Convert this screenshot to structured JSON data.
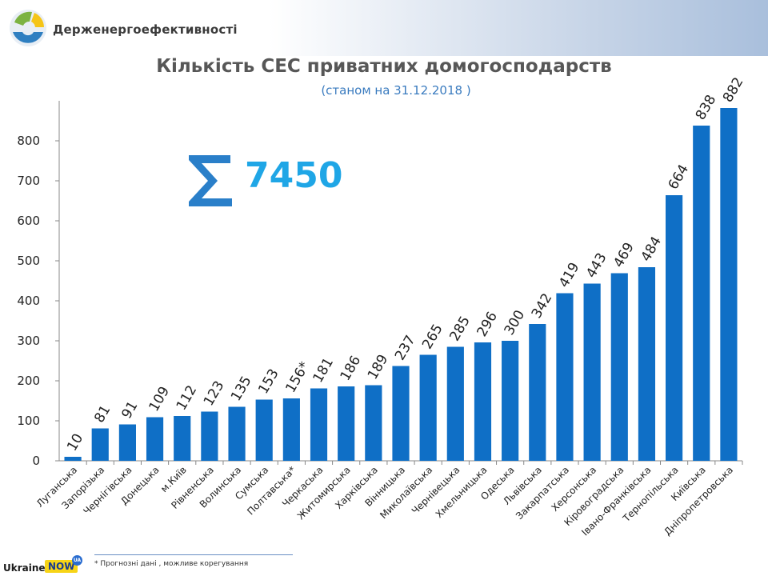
{
  "header": {
    "agency_name": "Держенергоефективності",
    "logo_icon": "agency-logo-icon"
  },
  "chart_data": {
    "type": "bar",
    "title": "Кількість СЕС приватних домогосподарств",
    "subtitle": "(станом на 31.12.2018 )",
    "xlabel": "",
    "ylabel": "",
    "ylim": [
      0,
      900
    ],
    "yticks": [
      0,
      100,
      200,
      300,
      400,
      500,
      600,
      700,
      800
    ],
    "grid": false,
    "bar_color": "#0f6fc6",
    "categories": [
      "Луганська",
      "Запорізька",
      "Чернігівська",
      "Донецька",
      "м.Київ",
      "Рівненська",
      "Волинська",
      "Сумська",
      "Полтавська*",
      "Черкаська",
      "Житомирська",
      "Харківська",
      "Вінницька",
      "Миколаївська",
      "Чернівецька",
      "Хмельницька",
      "Одеська",
      "Львівська",
      "Закарпатська",
      "Херсонська",
      "Кіровоградська",
      "Івано-Франківська",
      "Тернопільська",
      "Київська",
      "Дніпропетровська"
    ],
    "values": [
      10,
      81,
      91,
      109,
      112,
      123,
      135,
      153,
      156,
      181,
      186,
      189,
      237,
      265,
      285,
      296,
      300,
      342,
      419,
      443,
      469,
      484,
      664,
      838,
      882
    ],
    "data_labels": [
      "10",
      "81",
      "91",
      "109",
      "112",
      "123",
      "135",
      "153",
      "156*",
      "181",
      "186",
      "189",
      "237",
      "265",
      "285",
      "296",
      "300",
      "342",
      "419",
      "443",
      "469",
      "484",
      "664",
      "838",
      "882"
    ],
    "annotations": [
      {
        "symbol": "Σ",
        "text": "7450",
        "color": "#1fa6e6"
      }
    ]
  },
  "footer": {
    "footnote": "* Прогнозні дані , можливе корегування",
    "brand_ukraine": "Ukraine",
    "brand_now": "NOW",
    "brand_ua": "UA"
  }
}
